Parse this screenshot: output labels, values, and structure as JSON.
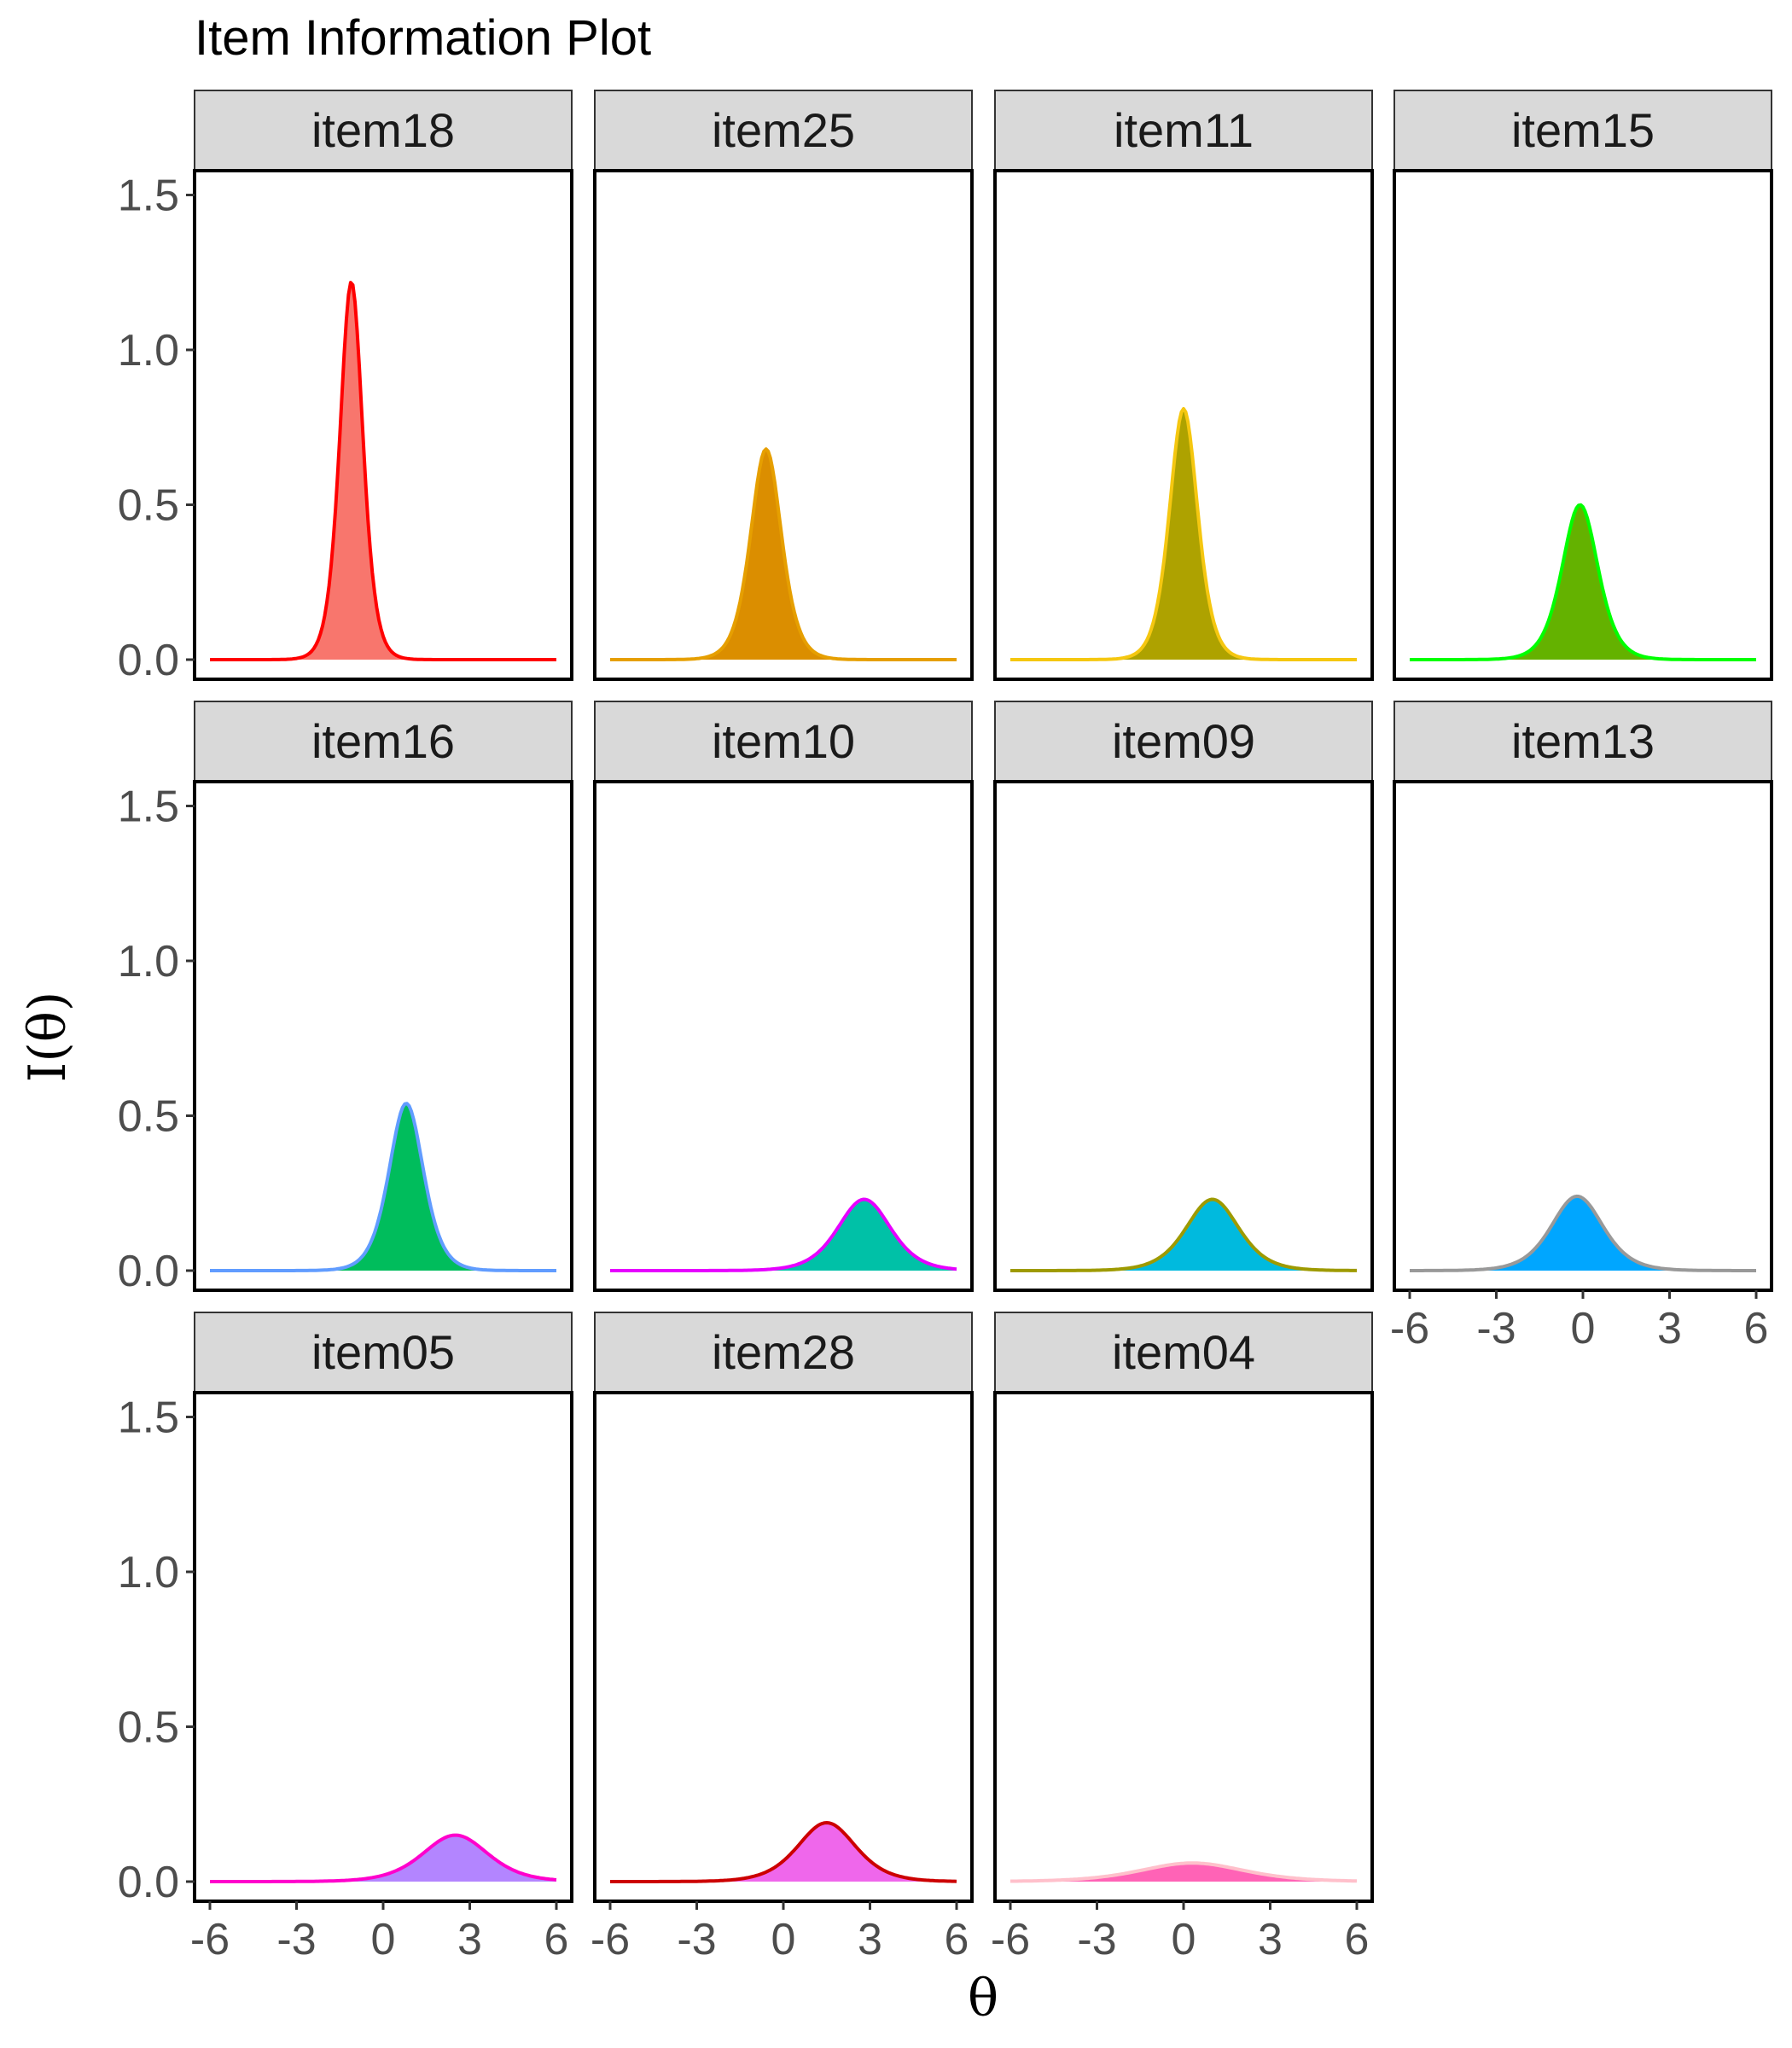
{
  "chart_data": {
    "type": "area",
    "title": "Item Information Plot",
    "xlabel": "θ",
    "ylabel": "I(θ)",
    "xlim": [
      -6,
      6
    ],
    "ylim": [
      0,
      1.5
    ],
    "x_ticks": [
      -6,
      -3,
      0,
      3,
      6
    ],
    "y_ticks": [
      0.0,
      0.5,
      1.0,
      1.5
    ],
    "y_tick_labels": [
      "0.0",
      "0.5",
      "1.0",
      "1.5"
    ],
    "x_tick_labels": [
      "-6",
      "-3",
      "0",
      "3",
      "6"
    ],
    "grid": false,
    "legend": "none",
    "facet_layout": {
      "columns": 4,
      "rows": 3
    },
    "series": [
      {
        "name": "item18",
        "peak_theta": -1.1,
        "peak_info": 1.22,
        "fill": "#F8766D",
        "line": "#FF0000"
      },
      {
        "name": "item25",
        "peak_theta": -0.6,
        "peak_info": 0.68,
        "fill": "#DB8E00",
        "line": "#E69F00"
      },
      {
        "name": "item11",
        "peak_theta": 0.0,
        "peak_info": 0.81,
        "fill": "#AEA200",
        "line": "#F5C710"
      },
      {
        "name": "item15",
        "peak_theta": -0.1,
        "peak_info": 0.5,
        "fill": "#64B200",
        "line": "#00FF00"
      },
      {
        "name": "item16",
        "peak_theta": 0.8,
        "peak_info": 0.54,
        "fill": "#00BD5C",
        "line": "#619CFF"
      },
      {
        "name": "item10",
        "peak_theta": 2.8,
        "peak_info": 0.23,
        "fill": "#00C1A7",
        "line": "#E600FF"
      },
      {
        "name": "item09",
        "peak_theta": 1.0,
        "peak_info": 0.23,
        "fill": "#00BADE",
        "line": "#9E9A00"
      },
      {
        "name": "item13",
        "peak_theta": -0.2,
        "peak_info": 0.24,
        "fill": "#00A6FF",
        "line": "#999999"
      },
      {
        "name": "item05",
        "peak_theta": 2.5,
        "peak_info": 0.15,
        "fill": "#B385FF",
        "line": "#FF00CC"
      },
      {
        "name": "item28",
        "peak_theta": 1.5,
        "peak_info": 0.19,
        "fill": "#EF67EB",
        "line": "#CC0000"
      },
      {
        "name": "item04",
        "peak_theta": 0.3,
        "peak_info": 0.06,
        "fill": "#FF63B6",
        "line": "#FFC0CB"
      }
    ]
  },
  "colors": {
    "strip_background": "#D9D9D9",
    "panel_border": "#000000",
    "tick_color": "#333333"
  }
}
